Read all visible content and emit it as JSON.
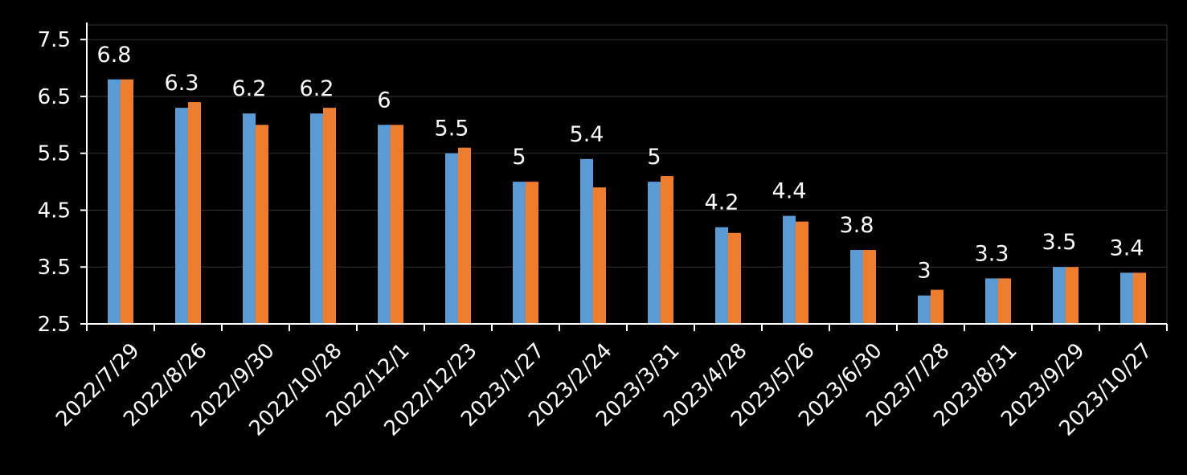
{
  "chart_data": {
    "type": "bar",
    "categories": [
      "2022/7/29",
      "2022/8/26",
      "2022/9/30",
      "2022/10/28",
      "2022/12/1",
      "2022/12/23",
      "2023/1/27",
      "2023/2/24",
      "2023/3/31",
      "2023/4/28",
      "2023/5/26",
      "2023/6/30",
      "2023/7/28",
      "2023/8/31",
      "2023/9/29",
      "2023/10/27"
    ],
    "series": [
      {
        "color": "#5b9bd5",
        "values": [
          6.8,
          6.3,
          6.2,
          6.2,
          6.0,
          5.5,
          5.0,
          5.4,
          5.0,
          4.2,
          4.4,
          3.8,
          3.0,
          3.3,
          3.5,
          3.4
        ]
      },
      {
        "color": "#ed7d31",
        "values": [
          6.8,
          6.4,
          6.0,
          6.3,
          6.0,
          5.6,
          5.0,
          4.9,
          5.1,
          4.1,
          4.3,
          3.8,
          3.1,
          3.3,
          3.5,
          3.4
        ]
      }
    ],
    "data_labels": [
      "6.8",
      "6.3",
      "6.2",
      "6.2",
      "6",
      "5.5",
      "5",
      "5.4",
      "5",
      "4.2",
      "4.4",
      "3.8",
      "3",
      "3.3",
      "3.5",
      "3.4"
    ],
    "yticks": [
      "2.5",
      "3.5",
      "4.5",
      "5.5",
      "6.5",
      "7.5"
    ],
    "ylim": [
      2.5,
      7.8
    ],
    "grid": true,
    "title": "",
    "xlabel": "",
    "ylabel": ""
  }
}
